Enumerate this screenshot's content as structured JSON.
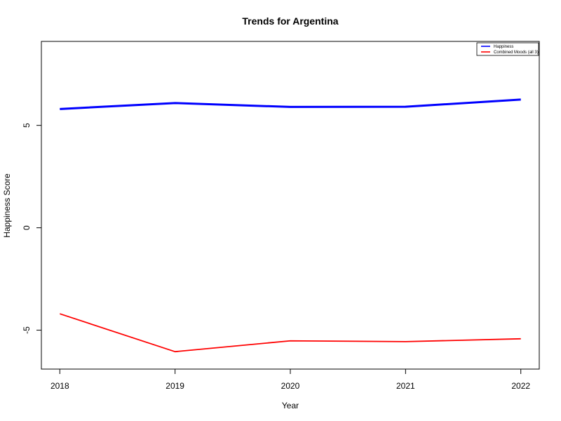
{
  "chart_data": {
    "type": "line",
    "title": "Trends for Argentina",
    "xlabel": "Year",
    "ylabel": "Happiness Score",
    "x": [
      2018,
      2019,
      2020,
      2021,
      2022
    ],
    "x_tick_labels": [
      "2018",
      "2019",
      "2020",
      "2021",
      "2022"
    ],
    "xlim": [
      2017.84,
      2022.16
    ],
    "ylim": [
      -6.9,
      9.1
    ],
    "y_ticks": [
      -5,
      0,
      5
    ],
    "y_tick_labels": [
      "-5",
      "0",
      "5"
    ],
    "grid": false,
    "legend_position": "top-right",
    "series": [
      {
        "name": "Happiness",
        "color": "#0000ff",
        "values": [
          5.8,
          6.09,
          5.9,
          5.91,
          6.26
        ]
      },
      {
        "name": "Combined Moods (all 3)",
        "color": "#ff0000",
        "values": [
          -4.2,
          -6.05,
          -5.52,
          -5.56,
          -5.42
        ]
      }
    ]
  }
}
